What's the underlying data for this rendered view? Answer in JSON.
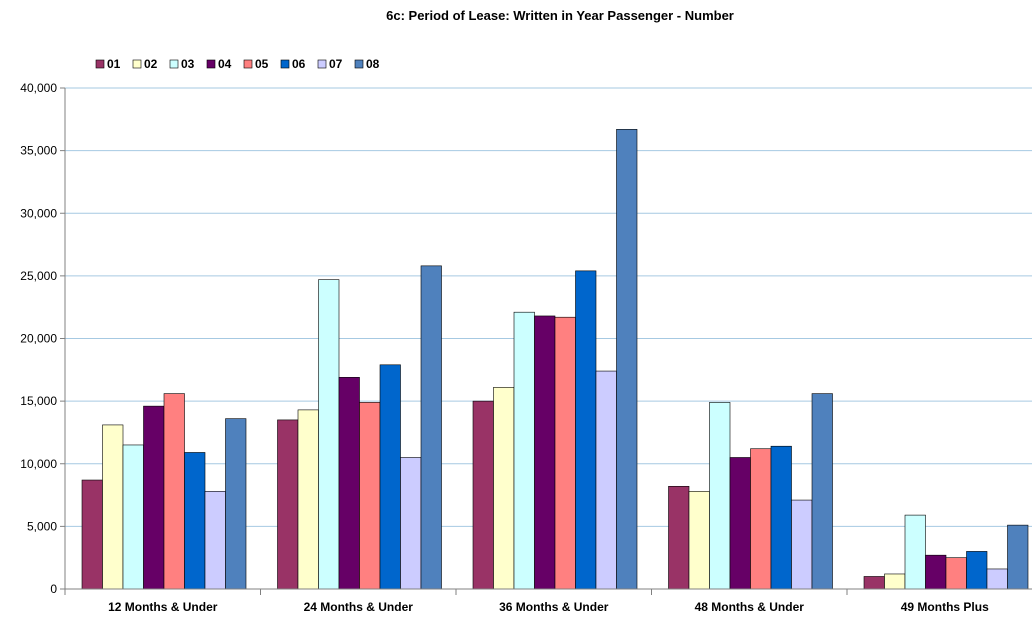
{
  "chart_data": {
    "type": "bar",
    "title": "6c: Period of Lease: Written in Year Passenger - Number",
    "xlabel": "",
    "ylabel": "",
    "categories": [
      "12 Months & Under",
      "24 Months & Under",
      "36 Months & Under",
      "48 Months & Under",
      "49 Months Plus"
    ],
    "series": [
      {
        "name": "01",
        "color": "#993366",
        "values": [
          8700,
          13500,
          15000,
          8200,
          1000
        ]
      },
      {
        "name": "02",
        "color": "#FFFFCC",
        "values": [
          13100,
          14300,
          16100,
          7800,
          1200
        ]
      },
      {
        "name": "03",
        "color": "#CCFFFF",
        "values": [
          11500,
          24700,
          22100,
          14900,
          5900
        ]
      },
      {
        "name": "04",
        "color": "#660066",
        "values": [
          14600,
          16900,
          21800,
          10500,
          2700
        ]
      },
      {
        "name": "05",
        "color": "#FF8080",
        "values": [
          15600,
          14900,
          21700,
          11200,
          2500
        ]
      },
      {
        "name": "06",
        "color": "#0066CC",
        "values": [
          10900,
          17900,
          25400,
          11400,
          3000
        ]
      },
      {
        "name": "07",
        "color": "#CCCCFF",
        "values": [
          7800,
          10500,
          17400,
          7100,
          1600
        ]
      },
      {
        "name": "08",
        "color": "#4F81BD",
        "values": [
          13600,
          25800,
          36700,
          15600,
          5100
        ]
      }
    ],
    "ylim": [
      0,
      40000
    ],
    "yticks": [
      "0",
      "5,000",
      "10,000",
      "15,000",
      "20,000",
      "25,000",
      "30,000",
      "35,000",
      "40,000"
    ],
    "grid": true,
    "legend_position": "top-left"
  }
}
